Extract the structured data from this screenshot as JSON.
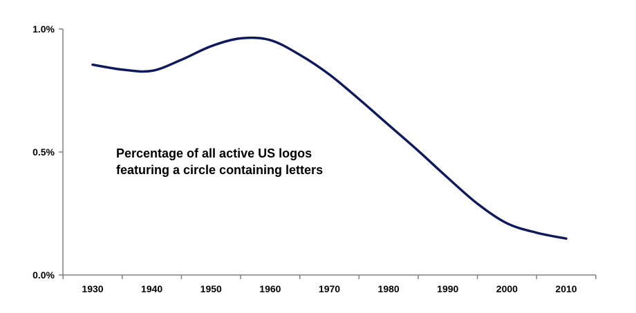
{
  "chart_data": {
    "type": "line",
    "title": "",
    "xlabel": "",
    "ylabel": "",
    "annotation": [
      "Percentage of all active US logos",
      "featuring a circle containing letters"
    ],
    "x_ticks": [
      "1930",
      "1940",
      "1950",
      "1960",
      "1970",
      "1980",
      "1990",
      "2000",
      "2010"
    ],
    "y_ticks": [
      "0.0%",
      "0.5%",
      "1.0%"
    ],
    "xlim": [
      1925,
      2015
    ],
    "ylim": [
      0,
      1.0
    ],
    "grid": false,
    "legend": "none",
    "series": [
      {
        "color": "#0f1a5c",
        "x": [
          1930,
          1935,
          1940,
          1945,
          1950,
          1955,
          1960,
          1965,
          1970,
          1975,
          1980,
          1985,
          1990,
          1995,
          2000,
          2005,
          2010
        ],
        "y": [
          0.855,
          0.835,
          0.83,
          0.875,
          0.93,
          0.962,
          0.955,
          0.895,
          0.815,
          0.715,
          0.61,
          0.505,
          0.395,
          0.29,
          0.21,
          0.172,
          0.148
        ]
      }
    ]
  }
}
